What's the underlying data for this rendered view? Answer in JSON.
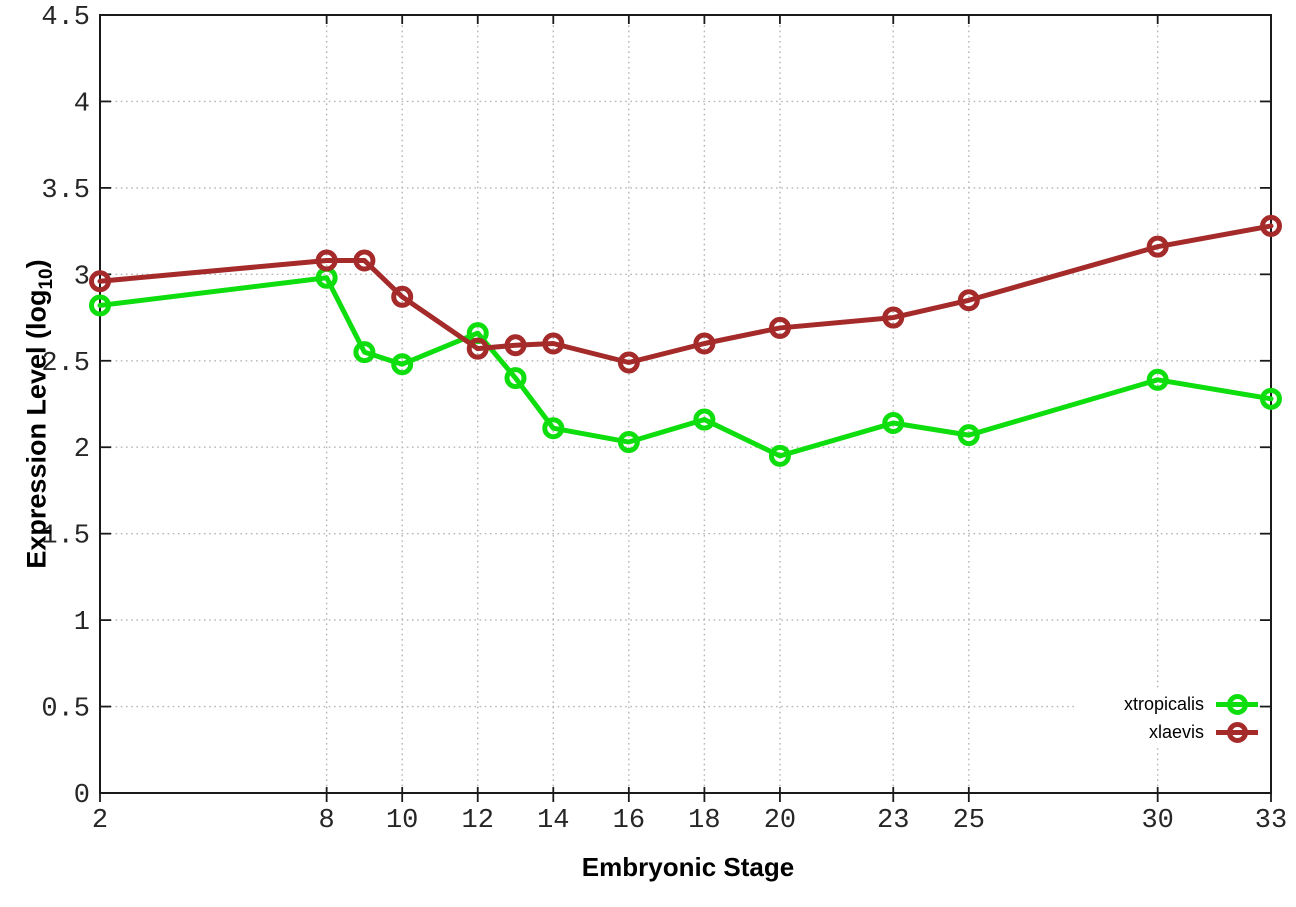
{
  "chart_data": {
    "type": "line",
    "title": "",
    "xlabel": "Embryonic Stage",
    "ylabel": "Expression Level (log10)",
    "ylabel_main": "Expression Level (log",
    "ylabel_sub": "10",
    "ylabel_close": ")",
    "x": [
      2,
      8,
      9,
      10,
      12,
      13,
      14,
      16,
      18,
      20,
      23,
      25,
      30,
      33
    ],
    "xlim": [
      2,
      33
    ],
    "ylim": [
      0,
      4.5
    ],
    "x_ticks": [
      2,
      8,
      10,
      12,
      14,
      16,
      18,
      20,
      23,
      25,
      30,
      33
    ],
    "x_tick_labels": [
      "2",
      "8",
      "10",
      "12",
      "14",
      "16",
      "18",
      "20",
      "23",
      "25",
      "30",
      "33"
    ],
    "y_ticks": [
      0,
      0.5,
      1,
      1.5,
      2,
      2.5,
      3,
      3.5,
      4,
      4.5
    ],
    "y_tick_labels": [
      "0",
      "0.5",
      "1",
      "1.5",
      "2",
      "2.5",
      "3",
      "3.5",
      "4",
      "4.5"
    ],
    "grid": true,
    "marker": "open-circle",
    "legend_position": "bottom-right",
    "series": [
      {
        "name": "xtropicalis",
        "color": "#0edd0e",
        "values": [
          2.82,
          2.98,
          2.55,
          2.48,
          2.66,
          2.4,
          2.11,
          2.03,
          2.16,
          1.95,
          2.14,
          2.07,
          2.39,
          2.28
        ]
      },
      {
        "name": "xlaevis",
        "color": "#a52a2a",
        "values": [
          2.96,
          3.08,
          3.08,
          2.87,
          2.57,
          2.59,
          2.6,
          2.49,
          2.6,
          2.69,
          2.75,
          2.85,
          3.16,
          3.28
        ]
      }
    ]
  },
  "colors": {
    "background": "#ffffff",
    "plot_border": "#1a1a1a",
    "grid": "#b5b5b5",
    "tick": "#1a1a1a",
    "tick_label": "#262626",
    "series_xtropicalis": "#0edd0e",
    "series_xlaevis": "#a52a2a"
  }
}
